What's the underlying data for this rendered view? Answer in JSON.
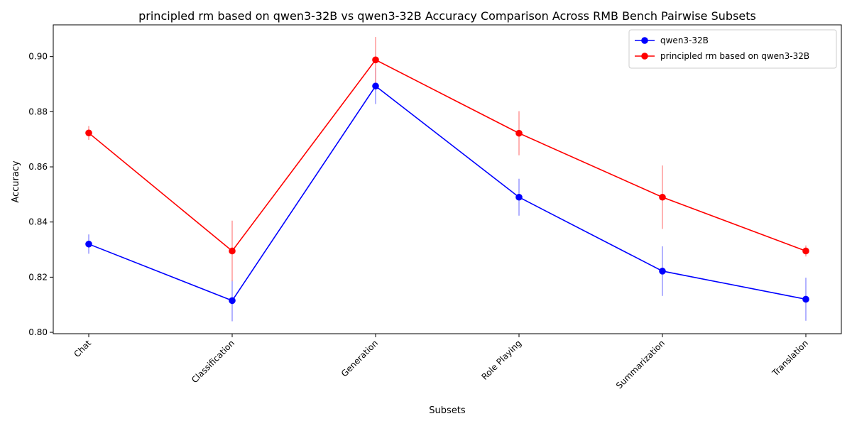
{
  "chart_data": {
    "type": "line",
    "title": "principled rm based on qwen3-32B  vs qwen3-32B Accuracy Comparison Across RMB Bench Pairwise Subsets",
    "xlabel": "Subsets",
    "ylabel": "Accuracy",
    "categories": [
      "Chat",
      "Classification",
      "Generation",
      "Role Playing",
      "Summarization",
      "Translation"
    ],
    "ylim": [
      0.7995,
      0.9115
    ],
    "yticks": [
      0.8,
      0.82,
      0.84,
      0.86,
      0.88,
      0.9
    ],
    "ytick_labels": [
      "0.80",
      "0.82",
      "0.84",
      "0.86",
      "0.88",
      "0.90"
    ],
    "grid": false,
    "legend_position": "top-right",
    "series": [
      {
        "name": "qwen3-32B",
        "color": "#0000ff",
        "error_color": "#9999ff",
        "values": [
          0.832,
          0.8115,
          0.8893,
          0.849,
          0.8222,
          0.812
        ],
        "errors": [
          0.0035,
          0.0075,
          0.0065,
          0.0067,
          0.009,
          0.0078
        ]
      },
      {
        "name": "principled rm based on qwen3-32B",
        "color": "#ff0000",
        "error_color": "#ff9999",
        "values": [
          0.8723,
          0.8295,
          0.8988,
          0.8722,
          0.849,
          0.8295
        ],
        "errors": [
          0.0025,
          0.011,
          0.0083,
          0.008,
          0.0115,
          0.002
        ]
      }
    ]
  }
}
